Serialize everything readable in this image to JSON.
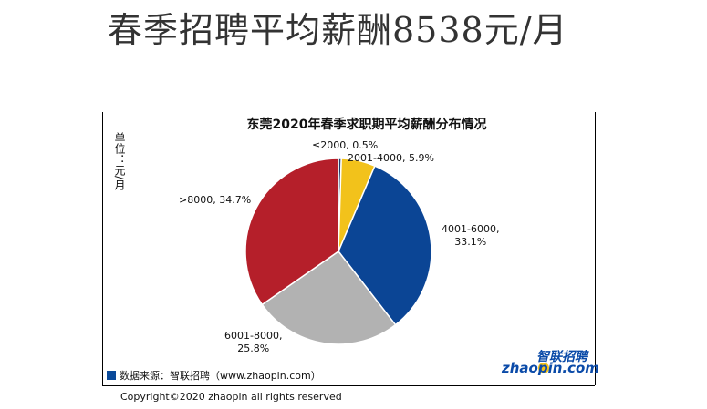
{
  "headline": "春季招聘平均薪酬8538元/月",
  "unit_label": "单位：元/月",
  "source_label": "数据来源：智联招聘（www.zhaopin.com）",
  "copyright": "Copyright©2020 zhaopin all rights reserved",
  "logo": {
    "cn": "智联招聘",
    "en": "zhaopin.com"
  },
  "chart_data": {
    "type": "pie",
    "title": "东莞2020年春季求职期平均薪酬分布情况",
    "slices": [
      {
        "label": "≤2000, 0.5%",
        "value": 0.5,
        "color": "#1f3c6e"
      },
      {
        "label": "2001-4000, 5.9%",
        "value": 5.9,
        "color": "#f2c21b"
      },
      {
        "label": "4001-6000,\n33.1%",
        "value": 33.1,
        "color": "#0b4595"
      },
      {
        "label": "6001-8000,\n25.8%",
        "value": 25.8,
        "color": "#b2b2b2"
      },
      {
        "label": ">8000, 34.7%",
        "value": 34.7,
        "color": "#b51f2a"
      }
    ]
  }
}
